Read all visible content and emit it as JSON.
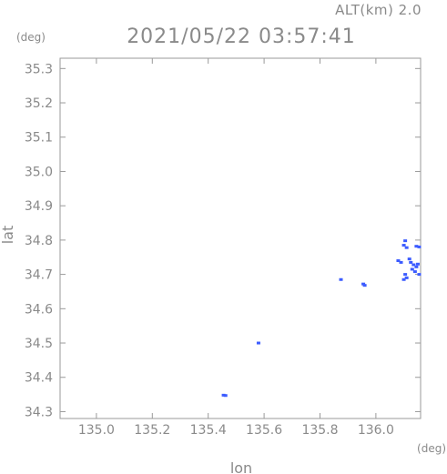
{
  "chart_data": {
    "type": "scatter",
    "title": "2021/05/22 03:57:41",
    "subtitle": "ALT(km) 2.0",
    "xlabel": "lon",
    "ylabel": "lat",
    "x_unit": "(deg)",
    "y_unit": "(deg)",
    "xlim": [
      134.87,
      136.16
    ],
    "ylim": [
      34.28,
      35.33
    ],
    "x_ticks": [
      135.0,
      135.2,
      135.4,
      135.6,
      135.8,
      136.0
    ],
    "x_tick_labels": [
      "135.0",
      "135.2",
      "135.4",
      "135.6",
      "135.8",
      "136.0"
    ],
    "y_ticks": [
      34.3,
      34.4,
      34.5,
      34.6,
      34.7,
      34.8,
      34.9,
      35.0,
      35.1,
      35.2,
      35.3
    ],
    "y_tick_labels": [
      "34.3",
      "34.4",
      "34.5",
      "34.6",
      "34.7",
      "34.8",
      "34.9",
      "35.0",
      "35.1",
      "35.2",
      "35.3"
    ],
    "grid": false,
    "marker_color": "#3c5cff",
    "points": [
      {
        "x": 135.455,
        "y": 34.348
      },
      {
        "x": 135.462,
        "y": 34.347
      },
      {
        "x": 135.58,
        "y": 34.5
      },
      {
        "x": 135.955,
        "y": 34.672
      },
      {
        "x": 135.96,
        "y": 34.668
      },
      {
        "x": 135.875,
        "y": 34.685
      },
      {
        "x": 136.1,
        "y": 34.785
      },
      {
        "x": 136.11,
        "y": 34.778
      },
      {
        "x": 136.105,
        "y": 34.798
      },
      {
        "x": 136.145,
        "y": 34.782
      },
      {
        "x": 136.155,
        "y": 34.78
      },
      {
        "x": 136.08,
        "y": 34.74
      },
      {
        "x": 136.09,
        "y": 34.735
      },
      {
        "x": 136.12,
        "y": 34.745
      },
      {
        "x": 136.125,
        "y": 34.735
      },
      {
        "x": 136.135,
        "y": 34.728
      },
      {
        "x": 136.145,
        "y": 34.722
      },
      {
        "x": 136.15,
        "y": 34.73
      },
      {
        "x": 136.13,
        "y": 34.715
      },
      {
        "x": 136.14,
        "y": 34.708
      },
      {
        "x": 136.105,
        "y": 34.7
      },
      {
        "x": 136.11,
        "y": 34.69
      },
      {
        "x": 136.1,
        "y": 34.685
      },
      {
        "x": 136.155,
        "y": 34.7
      }
    ]
  }
}
